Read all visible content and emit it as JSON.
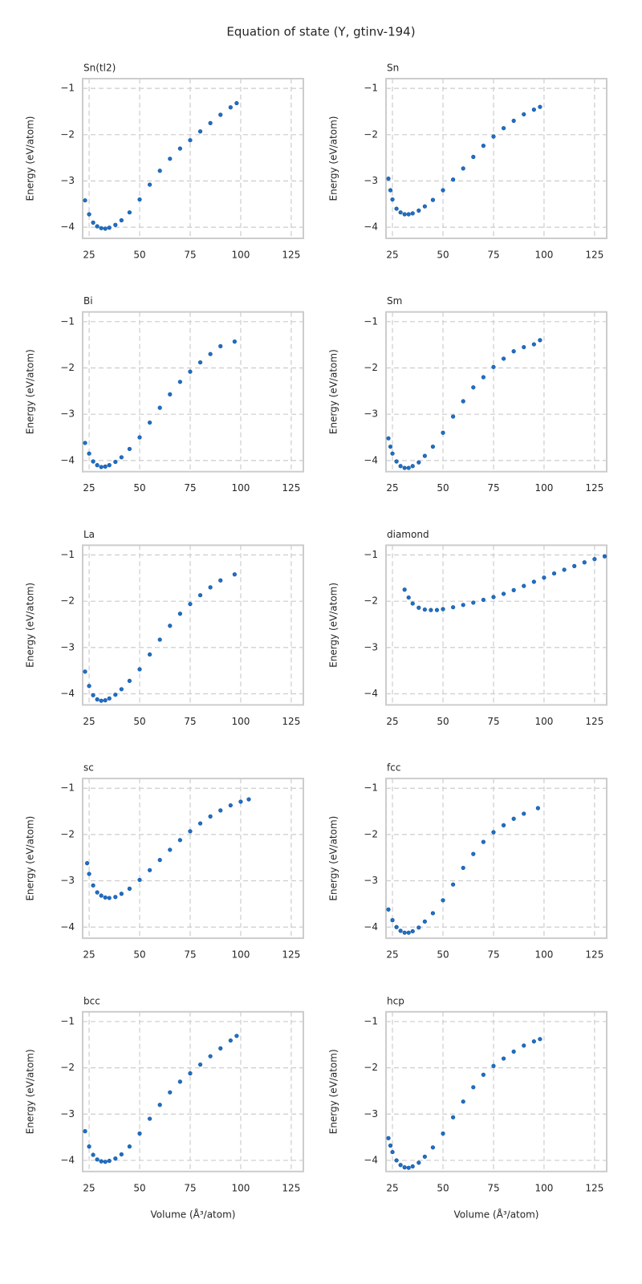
{
  "title": "Equation of state (Y, gtinv-194)",
  "chart_data": [
    {
      "type": "scatter",
      "title": "Sn(tl2)",
      "ylabel": "Energy (eV/atom)",
      "color": "#1f6fc5",
      "x": [
        23,
        25,
        27,
        29,
        31,
        33,
        35,
        38,
        41,
        45,
        50,
        55,
        60,
        65,
        70,
        75,
        80,
        85,
        90,
        95,
        98
      ],
      "values": [
        -3.42,
        -3.72,
        -3.9,
        -3.98,
        -4.02,
        -4.03,
        -4.01,
        -3.95,
        -3.85,
        -3.68,
        -3.4,
        -3.08,
        -2.78,
        -2.52,
        -2.3,
        -2.12,
        -1.93,
        -1.75,
        -1.57,
        -1.41,
        -1.32
      ],
      "xlim": [
        21.8,
        131
      ],
      "ylim": [
        -4.24,
        -0.79
      ],
      "xticks": [
        25,
        50,
        75,
        100,
        125
      ],
      "yticks": [
        {
          "value": -4,
          "label": "−4"
        },
        {
          "value": -3,
          "label": "−3"
        },
        {
          "value": -2,
          "label": "−2"
        },
        {
          "value": -1,
          "label": "−1"
        }
      ],
      "grid": true
    },
    {
      "type": "scatter",
      "title": "Sn",
      "ylabel": "Energy (eV/atom)",
      "color": "#1f6fc5",
      "x": [
        23,
        24,
        25,
        27,
        29,
        31,
        33,
        35,
        38,
        41,
        45,
        50,
        55,
        60,
        65,
        70,
        75,
        80,
        85,
        90,
        95,
        98
      ],
      "values": [
        -2.95,
        -3.2,
        -3.4,
        -3.6,
        -3.68,
        -3.72,
        -3.72,
        -3.7,
        -3.64,
        -3.55,
        -3.41,
        -3.2,
        -2.97,
        -2.73,
        -2.48,
        -2.24,
        -2.04,
        -1.86,
        -1.7,
        -1.56,
        -1.46,
        -1.4
      ],
      "xlim": [
        21.8,
        131
      ],
      "ylim": [
        -4.24,
        -0.79
      ],
      "xticks": [
        25,
        50,
        75,
        100,
        125
      ],
      "yticks": [
        {
          "value": -4,
          "label": "−4"
        },
        {
          "value": -3,
          "label": "−3"
        },
        {
          "value": -2,
          "label": "−2"
        },
        {
          "value": -1,
          "label": "−1"
        }
      ],
      "grid": true
    },
    {
      "type": "scatter",
      "title": "Bi",
      "ylabel": "Energy (eV/atom)",
      "color": "#1f6fc5",
      "x": [
        23,
        25,
        27,
        29,
        31,
        33,
        35,
        38,
        41,
        45,
        50,
        55,
        60,
        65,
        70,
        75,
        80,
        85,
        90,
        97
      ],
      "values": [
        -3.62,
        -3.85,
        -4.02,
        -4.1,
        -4.14,
        -4.13,
        -4.1,
        -4.03,
        -3.93,
        -3.75,
        -3.5,
        -3.18,
        -2.86,
        -2.57,
        -2.3,
        -2.08,
        -1.88,
        -1.7,
        -1.53,
        -1.43
      ],
      "xlim": [
        21.8,
        131
      ],
      "ylim": [
        -4.24,
        -0.79
      ],
      "xticks": [
        25,
        50,
        75,
        100,
        125
      ],
      "yticks": [
        {
          "value": -4,
          "label": "−4"
        },
        {
          "value": -3,
          "label": "−3"
        },
        {
          "value": -2,
          "label": "−2"
        },
        {
          "value": -1,
          "label": "−1"
        }
      ],
      "grid": true
    },
    {
      "type": "scatter",
      "title": "Sm",
      "ylabel": "Energy (eV/atom)",
      "color": "#1f6fc5",
      "x": [
        23,
        24,
        25,
        27,
        29,
        31,
        33,
        35,
        38,
        41,
        45,
        50,
        55,
        60,
        65,
        70,
        75,
        80,
        85,
        90,
        95,
        98
      ],
      "values": [
        -3.52,
        -3.7,
        -3.85,
        -4.02,
        -4.12,
        -4.16,
        -4.16,
        -4.12,
        -4.04,
        -3.9,
        -3.7,
        -3.4,
        -3.05,
        -2.72,
        -2.42,
        -2.2,
        -1.98,
        -1.8,
        -1.64,
        -1.55,
        -1.49,
        -1.4
      ],
      "xlim": [
        21.8,
        131
      ],
      "ylim": [
        -4.24,
        -0.79
      ],
      "xticks": [
        25,
        50,
        75,
        100,
        125
      ],
      "yticks": [
        {
          "value": -4,
          "label": "−4"
        },
        {
          "value": -3,
          "label": "−3"
        },
        {
          "value": -2,
          "label": "−2"
        },
        {
          "value": -1,
          "label": "−1"
        }
      ],
      "grid": true
    },
    {
      "type": "scatter",
      "title": "La",
      "ylabel": "Energy (eV/atom)",
      "color": "#1f6fc5",
      "x": [
        23,
        25,
        27,
        29,
        31,
        33,
        35,
        38,
        41,
        45,
        50,
        55,
        60,
        65,
        70,
        75,
        80,
        85,
        90,
        97
      ],
      "values": [
        -3.52,
        -3.83,
        -4.03,
        -4.12,
        -4.15,
        -4.14,
        -4.1,
        -4.02,
        -3.9,
        -3.72,
        -3.47,
        -3.15,
        -2.83,
        -2.53,
        -2.27,
        -2.06,
        -1.87,
        -1.7,
        -1.55,
        -1.42
      ],
      "xlim": [
        21.8,
        131
      ],
      "ylim": [
        -4.24,
        -0.79
      ],
      "xticks": [
        25,
        50,
        75,
        100,
        125
      ],
      "yticks": [
        {
          "value": -4,
          "label": "−4"
        },
        {
          "value": -3,
          "label": "−3"
        },
        {
          "value": -2,
          "label": "−2"
        },
        {
          "value": -1,
          "label": "−1"
        }
      ],
      "grid": true
    },
    {
      "type": "scatter",
      "title": "diamond",
      "ylabel": "Energy (eV/atom)",
      "color": "#1f6fc5",
      "x": [
        31,
        33,
        35,
        38,
        41,
        44,
        47,
        50,
        55,
        60,
        65,
        70,
        75,
        80,
        85,
        90,
        95,
        100,
        105,
        110,
        115,
        120,
        125,
        130
      ],
      "values": [
        -1.75,
        -1.92,
        -2.05,
        -2.14,
        -2.18,
        -2.19,
        -2.19,
        -2.17,
        -2.13,
        -2.08,
        -2.03,
        -1.97,
        -1.91,
        -1.84,
        -1.76,
        -1.67,
        -1.58,
        -1.49,
        -1.4,
        -1.32,
        -1.24,
        -1.16,
        -1.09,
        -1.03
      ],
      "xlim": [
        21.8,
        131
      ],
      "ylim": [
        -4.24,
        -0.79
      ],
      "xticks": [
        25,
        50,
        75,
        100,
        125
      ],
      "yticks": [
        {
          "value": -4,
          "label": "−4"
        },
        {
          "value": -3,
          "label": "−3"
        },
        {
          "value": -2,
          "label": "−2"
        },
        {
          "value": -1,
          "label": "−1"
        }
      ],
      "grid": true
    },
    {
      "type": "scatter",
      "title": "sc",
      "ylabel": "Energy (eV/atom)",
      "color": "#1f6fc5",
      "x": [
        24,
        25,
        27,
        29,
        31,
        33,
        35,
        38,
        41,
        45,
        50,
        55,
        60,
        65,
        70,
        75,
        80,
        85,
        90,
        95,
        100,
        104
      ],
      "values": [
        -2.62,
        -2.85,
        -3.1,
        -3.25,
        -3.32,
        -3.36,
        -3.37,
        -3.35,
        -3.28,
        -3.17,
        -2.98,
        -2.77,
        -2.55,
        -2.33,
        -2.12,
        -1.93,
        -1.76,
        -1.61,
        -1.48,
        -1.37,
        -1.29,
        -1.24
      ],
      "xlim": [
        21.8,
        131
      ],
      "ylim": [
        -4.24,
        -0.79
      ],
      "xticks": [
        25,
        50,
        75,
        100,
        125
      ],
      "yticks": [
        {
          "value": -4,
          "label": "−4"
        },
        {
          "value": -3,
          "label": "−3"
        },
        {
          "value": -2,
          "label": "−2"
        },
        {
          "value": -1,
          "label": "−1"
        }
      ],
      "grid": true
    },
    {
      "type": "scatter",
      "title": "fcc",
      "ylabel": "Energy (eV/atom)",
      "color": "#1f6fc5",
      "x": [
        23,
        25,
        27,
        29,
        31,
        33,
        35,
        38,
        41,
        45,
        50,
        55,
        60,
        65,
        70,
        75,
        80,
        85,
        90,
        97
      ],
      "values": [
        -3.62,
        -3.85,
        -4.0,
        -4.08,
        -4.12,
        -4.12,
        -4.09,
        -4.01,
        -3.88,
        -3.7,
        -3.42,
        -3.08,
        -2.72,
        -2.42,
        -2.16,
        -1.95,
        -1.8,
        -1.66,
        -1.55,
        -1.43
      ],
      "xlim": [
        21.8,
        131
      ],
      "ylim": [
        -4.24,
        -0.79
      ],
      "xticks": [
        25,
        50,
        75,
        100,
        125
      ],
      "yticks": [
        {
          "value": -4,
          "label": "−4"
        },
        {
          "value": -3,
          "label": "−3"
        },
        {
          "value": -2,
          "label": "−2"
        },
        {
          "value": -1,
          "label": "−1"
        }
      ],
      "grid": true
    },
    {
      "type": "scatter",
      "title": "bcc",
      "ylabel": "Energy (eV/atom)",
      "xlabel": "Volume (Å³/atom)",
      "color": "#1f6fc5",
      "x": [
        23,
        25,
        27,
        29,
        31,
        33,
        35,
        38,
        41,
        45,
        50,
        55,
        60,
        65,
        70,
        75,
        80,
        85,
        90,
        95,
        98
      ],
      "values": [
        -3.37,
        -3.7,
        -3.88,
        -3.98,
        -4.02,
        -4.03,
        -4.01,
        -3.96,
        -3.87,
        -3.7,
        -3.42,
        -3.1,
        -2.8,
        -2.53,
        -2.3,
        -2.12,
        -1.93,
        -1.75,
        -1.58,
        -1.41,
        -1.31
      ],
      "xlim": [
        21.8,
        131
      ],
      "ylim": [
        -4.24,
        -0.79
      ],
      "xticks": [
        25,
        50,
        75,
        100,
        125
      ],
      "yticks": [
        {
          "value": -4,
          "label": "−4"
        },
        {
          "value": -3,
          "label": "−3"
        },
        {
          "value": -2,
          "label": "−2"
        },
        {
          "value": -1,
          "label": "−1"
        }
      ],
      "grid": true
    },
    {
      "type": "scatter",
      "title": "hcp",
      "ylabel": "Energy (eV/atom)",
      "xlabel": "Volume (Å³/atom)",
      "color": "#1f6fc5",
      "x": [
        23,
        24,
        25,
        27,
        29,
        31,
        33,
        35,
        38,
        41,
        45,
        50,
        55,
        60,
        65,
        70,
        75,
        80,
        85,
        90,
        95,
        98
      ],
      "values": [
        -3.52,
        -3.68,
        -3.82,
        -4.0,
        -4.1,
        -4.15,
        -4.16,
        -4.13,
        -4.05,
        -3.92,
        -3.72,
        -3.42,
        -3.07,
        -2.73,
        -2.42,
        -2.15,
        -1.96,
        -1.8,
        -1.65,
        -1.52,
        -1.43,
        -1.38
      ],
      "xlim": [
        21.8,
        131
      ],
      "ylim": [
        -4.24,
        -0.79
      ],
      "xticks": [
        25,
        50,
        75,
        100,
        125
      ],
      "yticks": [
        {
          "value": -4,
          "label": "−4"
        },
        {
          "value": -3,
          "label": "−3"
        },
        {
          "value": -2,
          "label": "−2"
        },
        {
          "value": -1,
          "label": "−1"
        }
      ],
      "grid": true
    }
  ]
}
